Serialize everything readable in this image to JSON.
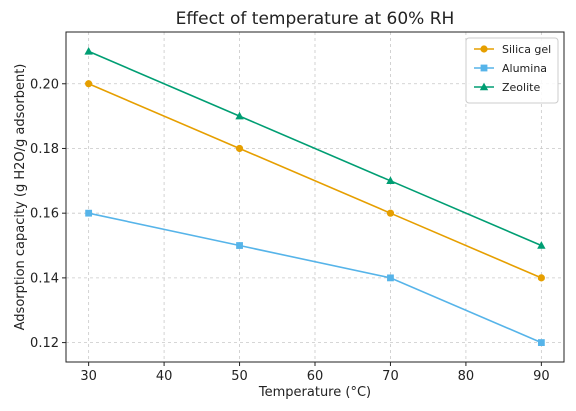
{
  "chart_data": {
    "type": "line",
    "title": "Effect of temperature at 60% RH",
    "xlabel": "Temperature (°C)",
    "ylabel": "Adsorption capacity (g H2O/g adsorbent)",
    "x": [
      30,
      50,
      70,
      90
    ],
    "xlim": [
      27,
      93
    ],
    "ylim": [
      0.114,
      0.216
    ],
    "xticks": [
      30,
      40,
      50,
      60,
      70,
      80,
      90
    ],
    "yticks": [
      0.12,
      0.14,
      0.16,
      0.18,
      0.2
    ],
    "ytick_labels": [
      "0.12",
      "0.14",
      "0.16",
      "0.18",
      "0.20"
    ],
    "grid": true,
    "legend_position": "top-right",
    "series": [
      {
        "name": "Silica gel",
        "values": [
          0.2,
          0.18,
          0.16,
          0.14
        ],
        "color": "#e69f00",
        "marker": "circle"
      },
      {
        "name": "Alumina",
        "values": [
          0.16,
          0.15,
          0.14,
          0.12
        ],
        "color": "#56b4e9",
        "marker": "square"
      },
      {
        "name": "Zeolite",
        "values": [
          0.21,
          0.19,
          0.17,
          0.15
        ],
        "color": "#009e73",
        "marker": "triangle"
      }
    ]
  }
}
